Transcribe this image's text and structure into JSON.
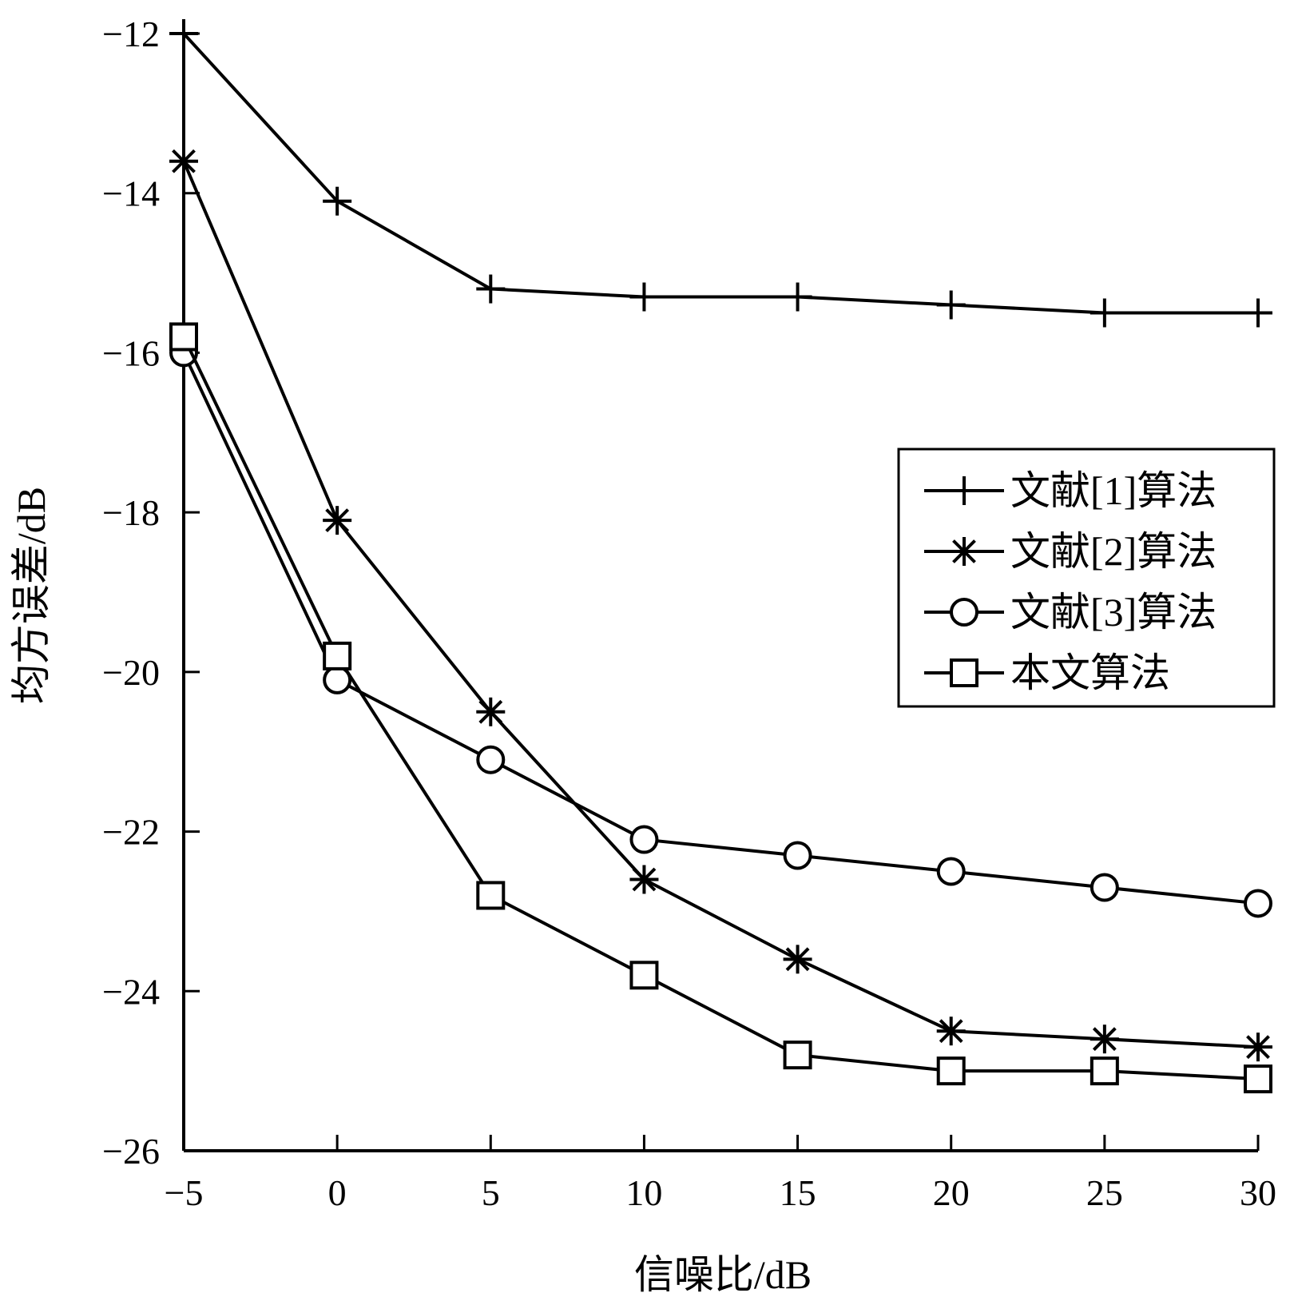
{
  "chart_data": {
    "type": "line",
    "title": "",
    "xlabel": "信噪比/dB",
    "ylabel": "均方误差/dB",
    "xlim": [
      -5,
      30
    ],
    "ylim": [
      -26,
      -12
    ],
    "xticks": [
      -5,
      0,
      5,
      10,
      15,
      20,
      25,
      30
    ],
    "yticks": [
      -26,
      -24,
      -22,
      -20,
      -18,
      -16,
      -14,
      -12
    ],
    "x": [
      -5,
      0,
      5,
      10,
      15,
      20,
      25,
      30
    ],
    "grid": false,
    "legend_position": "right",
    "series": [
      {
        "name": "文献[1]算法",
        "marker": "plus",
        "values": [
          -12.0,
          -14.1,
          -15.2,
          -15.3,
          -15.3,
          -15.4,
          -15.5,
          -15.5
        ]
      },
      {
        "name": "文献[2]算法",
        "marker": "asterisk",
        "values": [
          -13.6,
          -18.1,
          -20.5,
          -22.6,
          -23.6,
          -24.5,
          -24.6,
          -24.7
        ]
      },
      {
        "name": "文献[3]算法",
        "marker": "circle",
        "values": [
          -16.0,
          -20.1,
          -21.1,
          -22.1,
          -22.3,
          -22.5,
          -22.7,
          -22.9
        ]
      },
      {
        "name": "本文算法",
        "marker": "square",
        "values": [
          -15.8,
          -19.8,
          -22.8,
          -23.8,
          -24.8,
          -25.0,
          -25.0,
          -25.1
        ]
      }
    ]
  }
}
